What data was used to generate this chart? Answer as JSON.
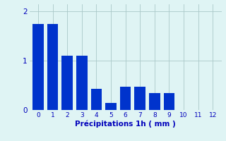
{
  "categories": [
    0,
    1,
    2,
    3,
    4,
    5,
    6,
    7,
    8,
    9,
    10,
    11,
    12
  ],
  "values": [
    1.75,
    1.75,
    1.1,
    1.1,
    0.43,
    0.14,
    0.47,
    0.47,
    0.35,
    0.35,
    0.0,
    0.0,
    0.0
  ],
  "bar_color": "#0033cc",
  "background_color": "#dff4f4",
  "xlabel": "Précipitations 1h ( mm )",
  "ylim": [
    0,
    2.15
  ],
  "yticks": [
    0,
    1,
    2
  ],
  "grid_color": "#aac8c8",
  "xlabel_color": "#0000bb",
  "tick_color": "#0000bb",
  "bar_width": 0.75
}
